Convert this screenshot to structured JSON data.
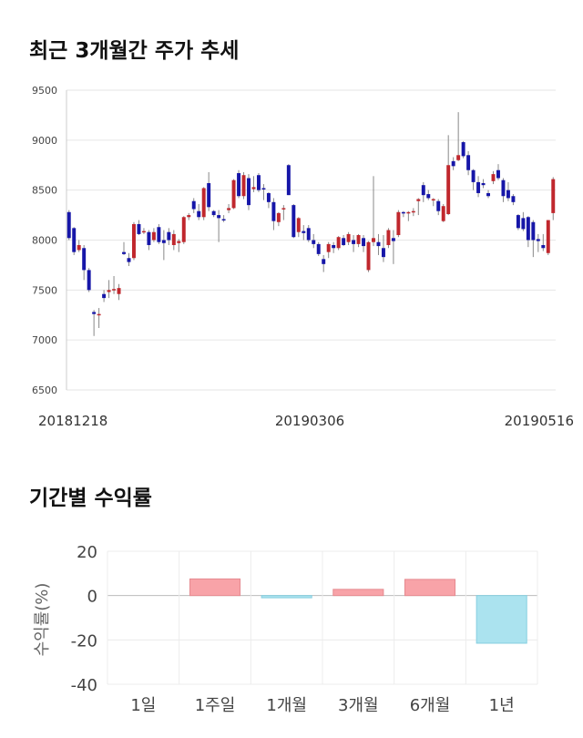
{
  "titles": {
    "price_trend": "최근 3개월간 주가 추세",
    "returns": "기간별 수익률"
  },
  "chart_data": [
    {
      "type": "candlestick",
      "title": "최근 3개월간 주가 추세",
      "ylim": [
        6500,
        9500
      ],
      "y_ticks": [
        6500,
        7000,
        7500,
        8000,
        8500,
        9000,
        9500
      ],
      "x_tick_labels": [
        "20181218",
        "20190306",
        "20190516"
      ],
      "up_color": "#c0272d",
      "down_color": "#1616a8",
      "grid": true,
      "candles": [
        [
          8280,
          8300,
          8000,
          8020
        ],
        [
          8120,
          8130,
          7850,
          7880
        ],
        [
          7900,
          8000,
          7880,
          7950
        ],
        [
          7920,
          7950,
          7600,
          7700
        ],
        [
          7700,
          7720,
          7480,
          7500
        ],
        [
          7280,
          7300,
          7040,
          7260
        ],
        [
          7250,
          7320,
          7120,
          7260
        ],
        [
          7460,
          7500,
          7380,
          7420
        ],
        [
          7480,
          7600,
          7420,
          7500
        ],
        [
          7500,
          7640,
          7460,
          7510
        ],
        [
          7460,
          7560,
          7400,
          7520
        ],
        [
          7880,
          7980,
          7850,
          7860
        ],
        [
          7820,
          7870,
          7740,
          7780
        ],
        [
          7820,
          8180,
          7800,
          8160
        ],
        [
          8160,
          8200,
          8050,
          8060
        ],
        [
          8090,
          8120,
          8060,
          8090
        ],
        [
          8080,
          8100,
          7900,
          7950
        ],
        [
          8000,
          8120,
          7980,
          8080
        ],
        [
          8130,
          8160,
          7960,
          7980
        ],
        [
          8000,
          8100,
          7800,
          7970
        ],
        [
          8080,
          8120,
          7950,
          8000
        ],
        [
          7950,
          8100,
          7900,
          8060
        ],
        [
          7970,
          8010,
          7880,
          7990
        ],
        [
          7980,
          8240,
          7960,
          8230
        ],
        [
          8230,
          8270,
          8200,
          8250
        ],
        [
          8390,
          8420,
          8270,
          8310
        ],
        [
          8290,
          8360,
          8200,
          8230
        ],
        [
          8230,
          8530,
          8200,
          8520
        ],
        [
          8570,
          8680,
          8290,
          8330
        ],
        [
          8290,
          8300,
          8230,
          8250
        ],
        [
          8250,
          8300,
          7980,
          8220
        ],
        [
          8210,
          8250,
          8180,
          8200
        ],
        [
          8300,
          8360,
          8270,
          8320
        ],
        [
          8320,
          8610,
          8310,
          8600
        ],
        [
          8670,
          8700,
          8420,
          8440
        ],
        [
          8440,
          8680,
          8410,
          8650
        ],
        [
          8620,
          8660,
          8300,
          8350
        ],
        [
          8510,
          8640,
          8480,
          8530
        ],
        [
          8650,
          8670,
          8480,
          8500
        ],
        [
          8520,
          8560,
          8400,
          8510
        ],
        [
          8470,
          8480,
          8320,
          8380
        ],
        [
          8380,
          8420,
          8100,
          8190
        ],
        [
          8180,
          8280,
          8140,
          8270
        ],
        [
          8310,
          8350,
          8200,
          8320
        ],
        [
          8750,
          8760,
          8450,
          8450
        ],
        [
          8350,
          8360,
          8020,
          8030
        ],
        [
          8080,
          8230,
          8030,
          8220
        ],
        [
          8090,
          8150,
          8000,
          8070
        ],
        [
          8120,
          8150,
          7980,
          8000
        ],
        [
          8000,
          8060,
          7920,
          7960
        ],
        [
          7960,
          7980,
          7840,
          7860
        ],
        [
          7810,
          7850,
          7680,
          7760
        ],
        [
          7880,
          7980,
          7820,
          7960
        ],
        [
          7950,
          7980,
          7870,
          7920
        ],
        [
          7920,
          8040,
          7900,
          8030
        ],
        [
          8020,
          8050,
          7940,
          7950
        ],
        [
          7980,
          8080,
          7950,
          8060
        ],
        [
          8000,
          8050,
          7880,
          7960
        ],
        [
          7960,
          8060,
          7930,
          8050
        ],
        [
          8020,
          8050,
          7880,
          7940
        ],
        [
          7700,
          7990,
          7680,
          7980
        ],
        [
          7980,
          8640,
          7940,
          8020
        ],
        [
          7980,
          8060,
          7850,
          7940
        ],
        [
          7920,
          8050,
          7780,
          7830
        ],
        [
          7950,
          8120,
          7920,
          8100
        ],
        [
          8020,
          8100,
          7760,
          7990
        ],
        [
          8050,
          8300,
          8030,
          8280
        ],
        [
          8280,
          8290,
          8230,
          8270
        ],
        [
          8270,
          8290,
          8190,
          8280
        ],
        [
          8280,
          8320,
          8240,
          8290
        ],
        [
          8390,
          8420,
          8250,
          8410
        ],
        [
          8550,
          8580,
          8380,
          8450
        ],
        [
          8460,
          8500,
          8400,
          8420
        ],
        [
          8400,
          8420,
          8340,
          8410
        ],
        [
          8390,
          8410,
          8250,
          8290
        ],
        [
          8190,
          8360,
          8180,
          8340
        ],
        [
          8260,
          9050,
          8250,
          8750
        ],
        [
          8790,
          8830,
          8700,
          8740
        ],
        [
          8800,
          9280,
          8790,
          8850
        ],
        [
          8980,
          8990,
          8820,
          8840
        ],
        [
          8850,
          8890,
          8650,
          8700
        ],
        [
          8700,
          8710,
          8500,
          8580
        ],
        [
          8580,
          8640,
          8430,
          8470
        ],
        [
          8570,
          8610,
          8520,
          8550
        ],
        [
          8470,
          8500,
          8420,
          8440
        ],
        [
          8590,
          8690,
          8560,
          8660
        ],
        [
          8700,
          8760,
          8600,
          8620
        ],
        [
          8600,
          8620,
          8380,
          8440
        ],
        [
          8500,
          8580,
          8390,
          8420
        ],
        [
          8440,
          8460,
          8350,
          8380
        ],
        [
          8250,
          8260,
          8100,
          8120
        ],
        [
          8220,
          8280,
          8090,
          8110
        ],
        [
          8230,
          8240,
          7930,
          8000
        ],
        [
          8180,
          8200,
          7830,
          8000
        ],
        [
          8010,
          8060,
          7880,
          7990
        ],
        [
          7950,
          8060,
          7890,
          7920
        ],
        [
          7870,
          8200,
          7850,
          8200
        ],
        [
          8270,
          8630,
          8200,
          8610
        ]
      ]
    },
    {
      "type": "bar",
      "title": "기간별 수익률",
      "ylabel": "수익률(%)",
      "categories": [
        "1일",
        "1주일",
        "1개월",
        "3개월",
        "6개월",
        "1년"
      ],
      "values": [
        0,
        7.5,
        -1.0,
        2.8,
        7.3,
        -21.5
      ],
      "ylim": [
        -40,
        20
      ],
      "y_ticks": [
        -40,
        -20,
        0,
        20
      ],
      "positive_color": "#f8a3a8",
      "negative_color": "#abe3ef"
    }
  ]
}
